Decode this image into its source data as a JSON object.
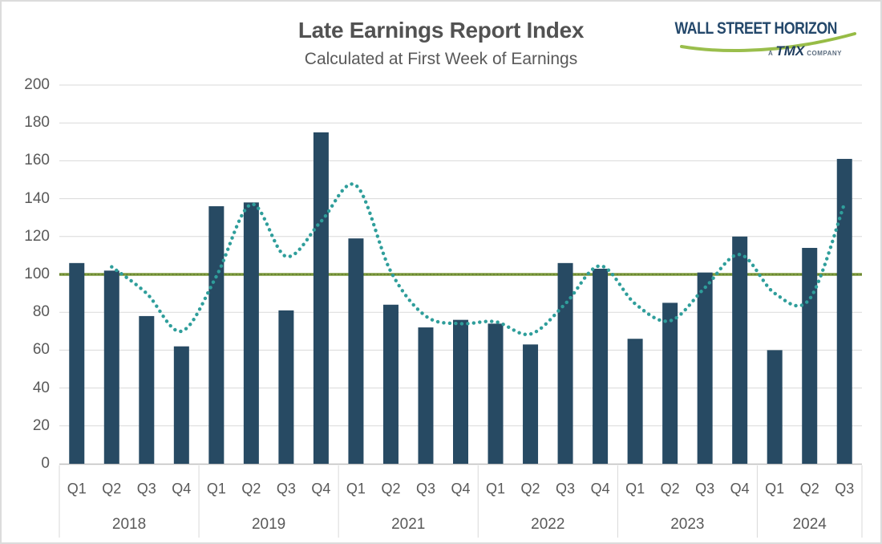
{
  "header": {
    "title": "Late Earnings Report Index",
    "subtitle": "Calculated at First Week of Earnings"
  },
  "logo": {
    "brand": "WALL STREET HORIZON",
    "sub_prefix": "A",
    "sub_brand": "TMX",
    "sub_suffix": "COMPANY",
    "brand_color": "#24486b",
    "swoosh_color": "#95bb42"
  },
  "chart_data": {
    "type": "bar",
    "title": "Late Earnings Report Index",
    "subtitle": "Calculated at First Week of Earnings",
    "ylim": [
      0,
      200
    ],
    "ytick_step": 20,
    "grid": true,
    "legend": "none",
    "reference_line": {
      "value": 100,
      "color": "#7d9b3e"
    },
    "groups": [
      {
        "year": "2018",
        "quarters": [
          "Q1",
          "Q2",
          "Q3",
          "Q4"
        ]
      },
      {
        "year": "2019",
        "quarters": [
          "Q1",
          "Q2",
          "Q3",
          "Q4"
        ]
      },
      {
        "year": "2021",
        "quarters": [
          "Q1",
          "Q2",
          "Q3",
          "Q4"
        ]
      },
      {
        "year": "2022",
        "quarters": [
          "Q1",
          "Q2",
          "Q3",
          "Q4"
        ]
      },
      {
        "year": "2023",
        "quarters": [
          "Q1",
          "Q2",
          "Q3",
          "Q4"
        ]
      },
      {
        "year": "2024",
        "quarters": [
          "Q1",
          "Q2",
          "Q3"
        ]
      }
    ],
    "categories": [
      "2018 Q1",
      "2018 Q2",
      "2018 Q3",
      "2018 Q4",
      "2019 Q1",
      "2019 Q2",
      "2019 Q3",
      "2019 Q4",
      "2021 Q1",
      "2021 Q2",
      "2021 Q3",
      "2021 Q4",
      "2022 Q1",
      "2022 Q2",
      "2022 Q3",
      "2022 Q4",
      "2023 Q1",
      "2023 Q2",
      "2023 Q3",
      "2023 Q4",
      "2024 Q1",
      "2024 Q2",
      "2024 Q3"
    ],
    "series": [
      {
        "name": "index_bars",
        "type": "bar",
        "color": "#274a63",
        "values": [
          106,
          102,
          78,
          62,
          136,
          138,
          81,
          175,
          119,
          84,
          72,
          76,
          74,
          63,
          106,
          103,
          66,
          85,
          101,
          120,
          60,
          114,
          161
        ]
      },
      {
        "name": "dotted_trend",
        "type": "dotted-line",
        "color": "#2f9e9b",
        "values": [
          null,
          104,
          90,
          70,
          99,
          137,
          109.5,
          128,
          147,
          101.5,
          78,
          74,
          75,
          68.5,
          84.5,
          104.5,
          84.5,
          75.5,
          93,
          110.5,
          90,
          87,
          137.5
        ]
      }
    ]
  },
  "colors": {
    "bar": "#274a63",
    "trend_dots": "#2f9e9b",
    "reference_line": "#7d9b3e",
    "gridline": "#dadada",
    "axis_line": "#c0c0c0",
    "label_text": "#595959"
  }
}
